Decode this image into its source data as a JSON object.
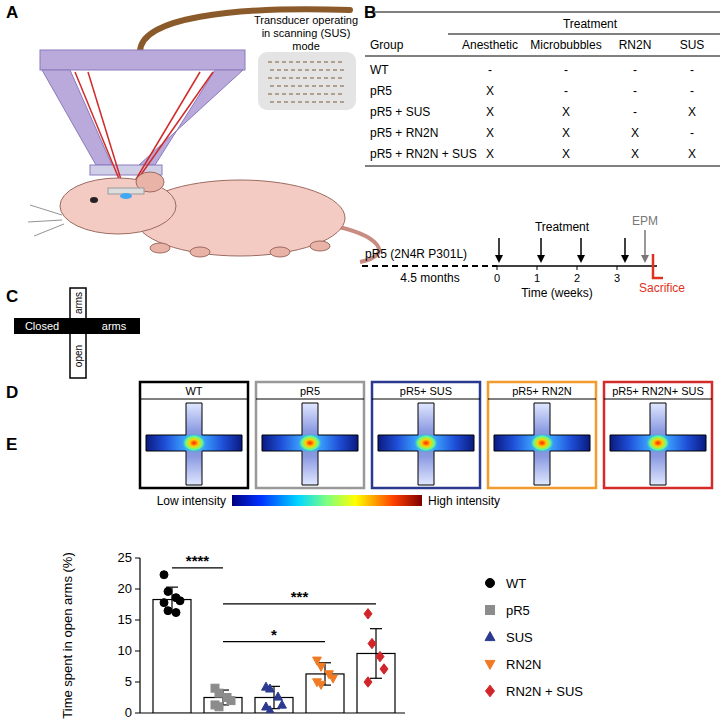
{
  "panels": {
    "A": {
      "label": "A",
      "caption": "Transducer operating in scanning (SUS) mode"
    },
    "B": {
      "label": "B",
      "table": {
        "header_group": "Treatment",
        "columns": [
          "Group",
          "Anesthetic",
          "Microbubbles",
          "RN2N",
          "SUS"
        ],
        "rows": [
          [
            "WT",
            "-",
            "-",
            "-",
            "-"
          ],
          [
            "pR5",
            "X",
            "-",
            "-",
            "-"
          ],
          [
            "pR5 + SUS",
            "X",
            "X",
            "-",
            "X"
          ],
          [
            "pR5 + RN2N",
            "X",
            "X",
            "X",
            "-"
          ],
          [
            "pR5 + RN2N + SUS",
            "X",
            "X",
            "X",
            "X"
          ]
        ]
      },
      "timeline": {
        "strain": "pR5 (2N4R P301L)",
        "age": "4.5 months",
        "treatment_label": "Treatment",
        "epm_label": "EPM",
        "sacrifice_label": "Sacrifice",
        "axis_label": "Time (weeks)",
        "xlim": [
          0,
          4
        ],
        "xticks": [
          0,
          1,
          2,
          3
        ],
        "treatment_weeks": [
          0.05,
          1.1,
          2.1,
          3.2
        ],
        "epm_week": 3.7,
        "sacrifice_week": 3.9
      }
    },
    "C": {
      "label": "C",
      "closed": "Closed",
      "closed_arms": "arms",
      "open": "open",
      "open_arms": "arms"
    },
    "D": {
      "label": "D",
      "groups": [
        {
          "title": "WT",
          "color": "#000000"
        },
        {
          "title": "pR5",
          "color": "#999999"
        },
        {
          "title": "pR5+ SUS",
          "color": "#2b3a8f"
        },
        {
          "title": "pR5+ RN2N",
          "color": "#f39b2d"
        },
        {
          "title": "pR5+ RN2N+ SUS",
          "color": "#d42a2a"
        }
      ],
      "colorbar": {
        "low": "Low intensity",
        "high": "High intensity"
      }
    },
    "E": {
      "label": "E"
    }
  },
  "chart_data": {
    "type": "bar",
    "y_label": "Time spent in open arms (%)",
    "categories": [
      null,
      null,
      null,
      null,
      null
    ],
    "series": [
      {
        "name": "WT",
        "color": "#000000",
        "marker": "circle",
        "values": [
          18.3,
          null,
          null,
          null,
          null
        ],
        "errors": [
          2.0,
          null,
          null,
          null,
          null
        ],
        "points": [
          22.3,
          19.6,
          18.6,
          18.1,
          17.8,
          16.5,
          16.2
        ]
      },
      {
        "name": "pR5",
        "color": "#8c8c8c",
        "marker": "square",
        "values": [
          null,
          2.5,
          null,
          null,
          null
        ],
        "errors": [
          null,
          1.2,
          null,
          null,
          null
        ],
        "points": [
          4.0,
          3.2,
          2.5,
          2.0,
          1.3,
          1.0
        ]
      },
      {
        "name": "SUS",
        "color": "#2b3a8f",
        "marker": "triangle",
        "values": [
          null,
          null,
          2.5,
          null,
          null
        ],
        "errors": [
          null,
          null,
          1.8,
          null,
          null
        ],
        "points": [
          4.2,
          3.9,
          2.6,
          1.3,
          1.0,
          0.4
        ]
      },
      {
        "name": "RN2N",
        "color": "#f07b24",
        "marker": "triangle-down",
        "values": [
          null,
          null,
          null,
          6.3,
          null
        ],
        "errors": [
          null,
          null,
          null,
          1.8,
          null
        ],
        "points": [
          8.5,
          7.5,
          6.3,
          5.6,
          5.0,
          4.6
        ]
      },
      {
        "name": "RN2N + SUS",
        "color": "#d1252a",
        "marker": "diamond",
        "values": [
          null,
          null,
          null,
          null,
          9.6
        ],
        "errors": [
          null,
          null,
          null,
          null,
          4.0
        ],
        "points": [
          16.0,
          11.2,
          9.1,
          7.1,
          5.0
        ]
      }
    ],
    "ylim": [
      0,
      25
    ],
    "yticks": [
      0,
      5,
      10,
      15,
      20,
      25
    ],
    "tick_labels": "y",
    "legend": "right",
    "annotations": [
      {
        "text": "****",
        "x": [
          0,
          1
        ],
        "y": 23.4
      },
      {
        "text": "***",
        "x": [
          1,
          4
        ],
        "y": 17.6
      },
      {
        "text": "*",
        "x": [
          1,
          3
        ],
        "y": 11.5
      }
    ]
  }
}
